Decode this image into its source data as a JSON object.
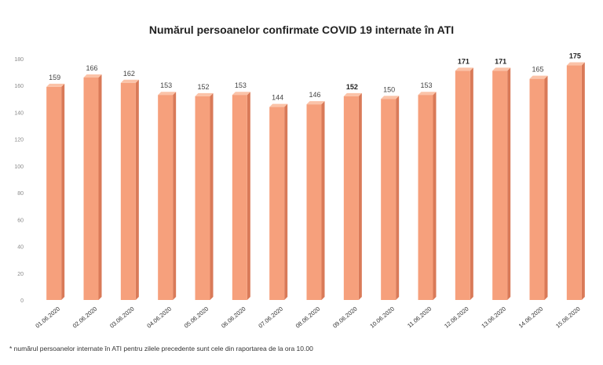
{
  "chart_data": {
    "type": "bar",
    "title": "Numărul persoanelor confirmate COVID 19 internate în ATI",
    "categories": [
      "01.06.2020",
      "02.06.2020",
      "03.06.2020",
      "04.06.2020",
      "05.06.2020",
      "06.06.2020",
      "07.06.2020",
      "08.06.2020",
      "09.06.2020",
      "10.06.2020",
      "11.06.2020",
      "12.06.2020",
      "13.06.2020",
      "14.06.2020",
      "15.06.2020"
    ],
    "values": [
      159,
      166,
      162,
      153,
      152,
      153,
      144,
      146,
      152,
      150,
      153,
      171,
      171,
      165,
      175
    ],
    "value_labels": [
      "159",
      "166",
      "162",
      "153",
      "152",
      "153",
      "144",
      "146",
      "152",
      "150",
      "153",
      "171",
      "171",
      "165",
      "175"
    ],
    "bold_labels": [
      false,
      false,
      false,
      false,
      false,
      false,
      false,
      false,
      true,
      false,
      false,
      true,
      true,
      false,
      true
    ],
    "ylim": [
      0,
      180
    ],
    "yticks": [
      "0",
      "20",
      "40",
      "60",
      "80",
      "100",
      "120",
      "140",
      "160",
      "180"
    ],
    "xlabel": "",
    "ylabel": "",
    "grid": false,
    "bar_color": "#f6a07c",
    "bar_side_color": "#d97a58",
    "bar_top_color": "#fbc3a8"
  },
  "footnote": "* numărul persoanelor internate în ATI pentru zilele precedente sunt cele din raportarea de la ora 10.00"
}
